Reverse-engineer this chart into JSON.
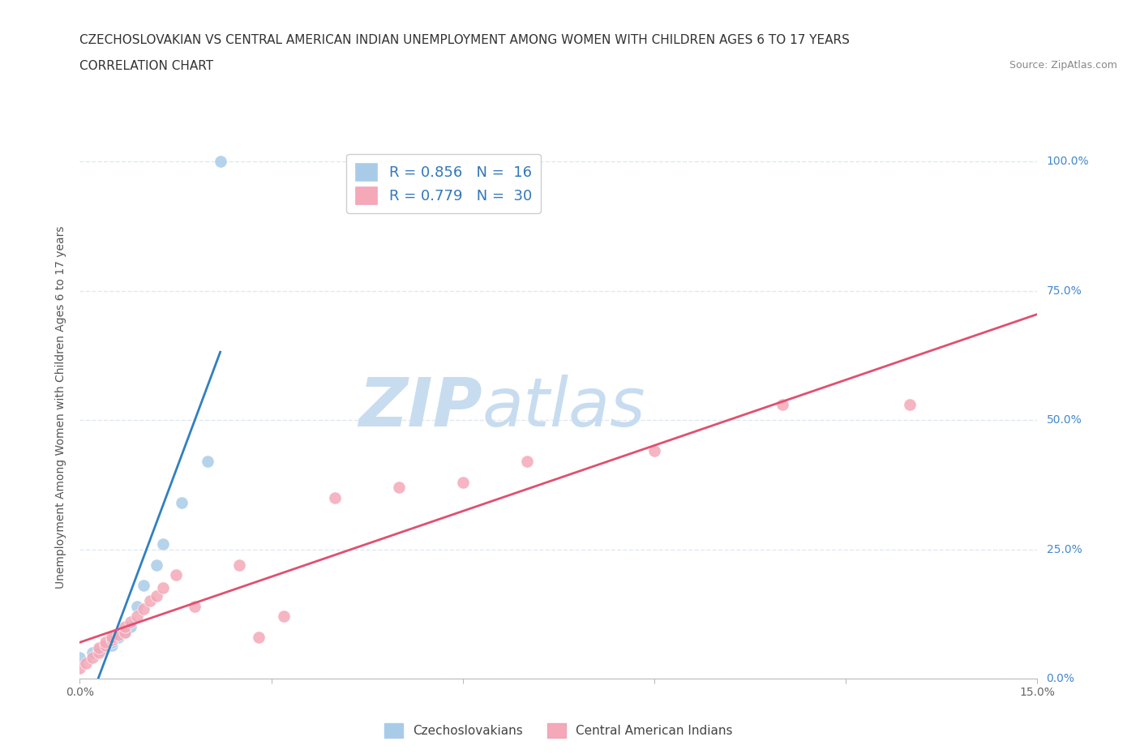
{
  "title_line1": "CZECHOSLOVAKIAN VS CENTRAL AMERICAN INDIAN UNEMPLOYMENT AMONG WOMEN WITH CHILDREN AGES 6 TO 17 YEARS",
  "title_line2": "CORRELATION CHART",
  "source_text": "Source: ZipAtlas.com",
  "ylabel": "Unemployment Among Women with Children Ages 6 to 17 years",
  "xlim": [
    0.0,
    0.15
  ],
  "ylim": [
    0.0,
    1.05
  ],
  "yticks": [
    0.0,
    0.25,
    0.5,
    0.75,
    1.0
  ],
  "ytick_labels_right": [
    "0.0%",
    "25.0%",
    "50.0%",
    "75.0%",
    "100.0%"
  ],
  "xticks": [
    0.0,
    0.03,
    0.06,
    0.09,
    0.12,
    0.15
  ],
  "xtick_labels": [
    "0.0%",
    "",
    "",
    "",
    "",
    "15.0%"
  ],
  "legend_r1": "R = 0.856   N =  16",
  "legend_r2": "R = 0.779   N =  30",
  "legend_color1": "#A8CCE8",
  "legend_color2": "#F4A8B8",
  "watermark_zip": "ZIP",
  "watermark_atlas": "atlas",
  "watermark_color": "#C8DCF0",
  "czech_color": "#A8CCE8",
  "central_color": "#F4A8B8",
  "trend_czech_color": "#3080C0",
  "trend_central_color": "#E05070",
  "czech_scatter": [
    [
      0.0,
      0.04
    ],
    [
      0.002,
      0.05
    ],
    [
      0.003,
      0.055
    ],
    [
      0.004,
      0.06
    ],
    [
      0.005,
      0.065
    ],
    [
      0.005,
      0.07
    ],
    [
      0.006,
      0.08
    ],
    [
      0.007,
      0.09
    ],
    [
      0.008,
      0.1
    ],
    [
      0.009,
      0.14
    ],
    [
      0.01,
      0.18
    ],
    [
      0.012,
      0.22
    ],
    [
      0.013,
      0.26
    ],
    [
      0.016,
      0.34
    ],
    [
      0.02,
      0.42
    ],
    [
      0.022,
      1.0
    ]
  ],
  "central_scatter": [
    [
      0.0,
      0.02
    ],
    [
      0.001,
      0.03
    ],
    [
      0.002,
      0.04
    ],
    [
      0.003,
      0.05
    ],
    [
      0.003,
      0.06
    ],
    [
      0.004,
      0.065
    ],
    [
      0.004,
      0.07
    ],
    [
      0.005,
      0.075
    ],
    [
      0.005,
      0.08
    ],
    [
      0.006,
      0.085
    ],
    [
      0.007,
      0.09
    ],
    [
      0.007,
      0.1
    ],
    [
      0.008,
      0.11
    ],
    [
      0.009,
      0.12
    ],
    [
      0.01,
      0.135
    ],
    [
      0.011,
      0.15
    ],
    [
      0.012,
      0.16
    ],
    [
      0.013,
      0.175
    ],
    [
      0.015,
      0.2
    ],
    [
      0.018,
      0.14
    ],
    [
      0.025,
      0.22
    ],
    [
      0.028,
      0.08
    ],
    [
      0.032,
      0.12
    ],
    [
      0.04,
      0.35
    ],
    [
      0.05,
      0.37
    ],
    [
      0.06,
      0.38
    ],
    [
      0.07,
      0.42
    ],
    [
      0.09,
      0.44
    ],
    [
      0.11,
      0.53
    ],
    [
      0.13,
      0.53
    ]
  ],
  "grid_color": "#E0E8F0",
  "bg_color": "#FFFFFF",
  "title_fontsize": 11,
  "subtitle_fontsize": 11,
  "ylabel_fontsize": 10,
  "tick_fontsize": 10,
  "right_tick_color": "#4488CC"
}
